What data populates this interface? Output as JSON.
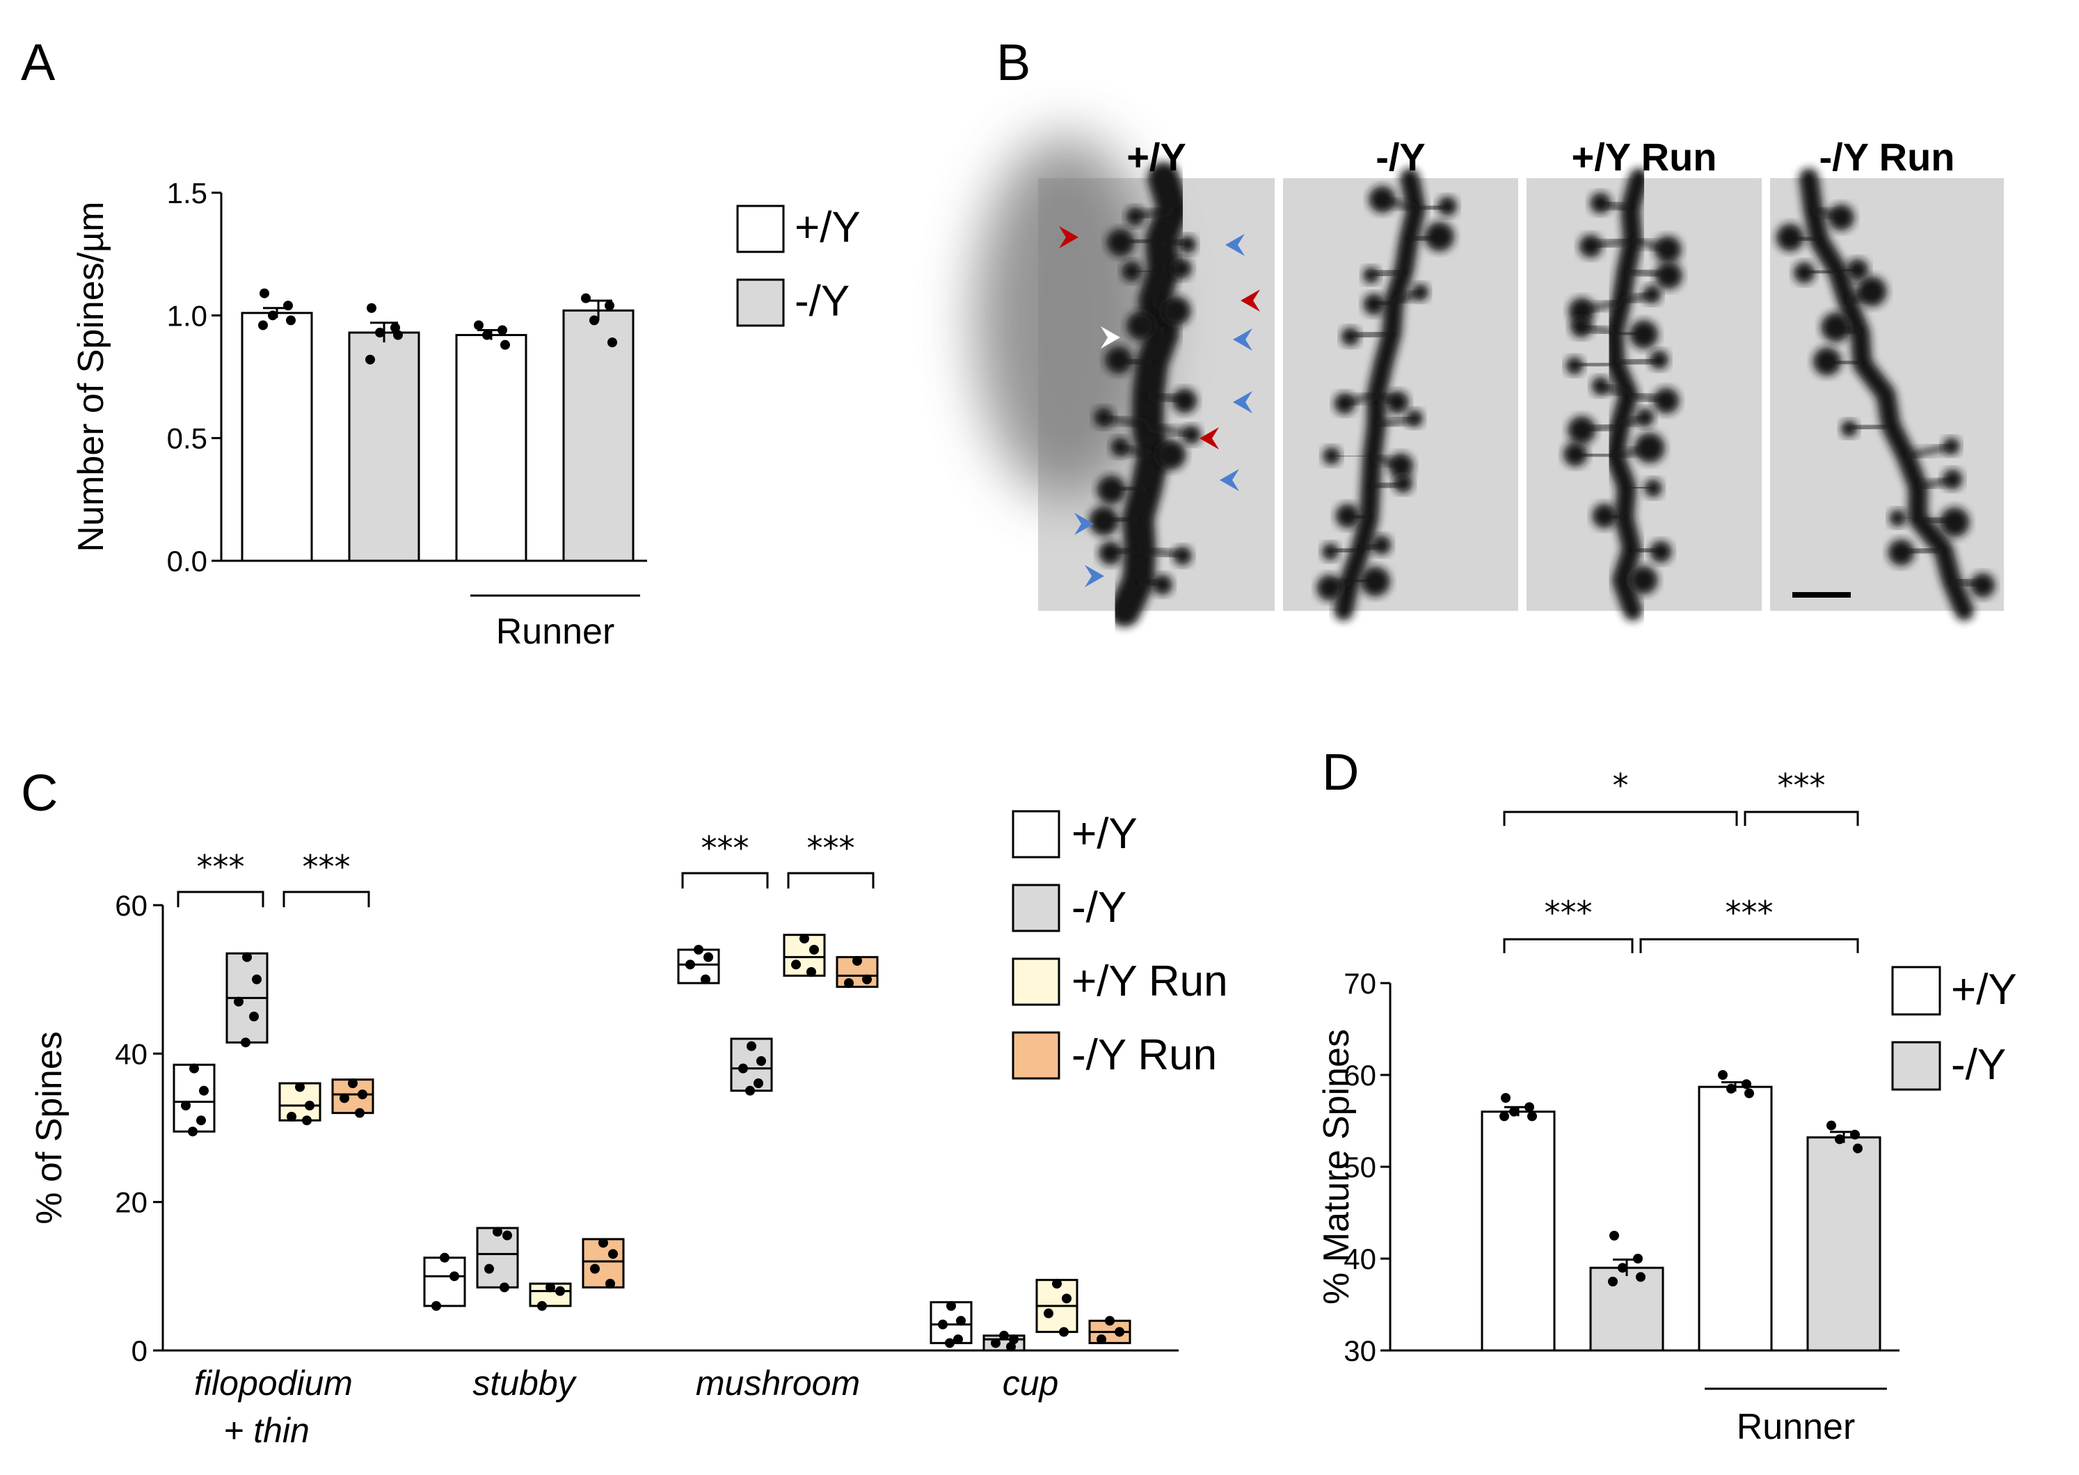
{
  "panels": {
    "A": "A",
    "B": "B",
    "C": "C",
    "D": "D"
  },
  "colors": {
    "wt": "#ffffff",
    "ko": "#d9d9d9",
    "wt_run": "#fff9d9",
    "ko_run": "#f5bf8e",
    "arrow_red": "#c00000",
    "arrow_blue": "#4a7fd0",
    "arrow_white": "#ffffff"
  },
  "panelB": {
    "titles": [
      "+/Y",
      "-/Y",
      "+/Y Run",
      "-/Y Run"
    ],
    "arrowheads": [
      {
        "color": "red",
        "direction": "right"
      },
      {
        "color": "blue",
        "direction": "left"
      },
      {
        "color": "red",
        "direction": "left"
      },
      {
        "color": "white",
        "direction": "right"
      },
      {
        "color": "blue",
        "direction": "left"
      },
      {
        "color": "blue",
        "direction": "left"
      },
      {
        "color": "red",
        "direction": "left"
      },
      {
        "color": "blue",
        "direction": "left"
      },
      {
        "color": "blue",
        "direction": "right"
      },
      {
        "color": "blue",
        "direction": "right"
      }
    ],
    "scale_bar": true
  },
  "chart_data": [
    {
      "panel": "A",
      "type": "bar",
      "ylabel": "Number of Spines/µm",
      "ylim": [
        0,
        1.5
      ],
      "yticks": [
        "0.0",
        "0.5",
        "1.0",
        "1.5"
      ],
      "categories": [
        "+/Y",
        "-/Y",
        "+/Y",
        "-/Y"
      ],
      "group_label": "Runner",
      "group_label_spans": [
        2,
        3
      ],
      "legend": [
        {
          "label": "+/Y",
          "color": "#ffffff"
        },
        {
          "label": "-/Y",
          "color": "#d9d9d9"
        }
      ],
      "legend_position": "right",
      "bars": [
        {
          "mean": 1.01,
          "sem": 0.02,
          "color": "#ffffff",
          "points": [
            1.09,
            1.04,
            1.0,
            0.98,
            0.96
          ]
        },
        {
          "mean": 0.93,
          "sem": 0.04,
          "color": "#d9d9d9",
          "points": [
            1.03,
            0.95,
            0.93,
            0.92,
            0.82
          ]
        },
        {
          "mean": 0.92,
          "sem": 0.02,
          "color": "#ffffff",
          "points": [
            0.96,
            0.94,
            0.92,
            0.88
          ]
        },
        {
          "mean": 1.02,
          "sem": 0.04,
          "color": "#d9d9d9",
          "points": [
            1.07,
            1.04,
            0.98,
            0.89
          ]
        }
      ]
    },
    {
      "panel": "C",
      "type": "box",
      "ylabel": "% of Spines",
      "ylim": [
        0,
        60
      ],
      "yticks": [
        "0",
        "20",
        "40",
        "60"
      ],
      "categories": [
        "filopodium + thin",
        "stubby",
        "mushroom",
        "cup"
      ],
      "category_lines": [
        [
          "filopodium",
          "+ thin"
        ],
        [
          "stubby"
        ],
        [
          "mushroom"
        ],
        [
          "cup"
        ]
      ],
      "legend": [
        {
          "label": "+/Y",
          "color": "#ffffff"
        },
        {
          "label": "-/Y",
          "color": "#d9d9d9"
        },
        {
          "label": "+/Y Run",
          "color": "#fff9d9"
        },
        {
          "label": "-/Y Run",
          "color": "#f5bf8e"
        }
      ],
      "legend_position": "right",
      "series": [
        {
          "name": "+/Y",
          "color": "#ffffff",
          "boxes": [
            {
              "min": 29.5,
              "median": 33.5,
              "max": 38.5,
              "points": [
                38,
                35,
                33,
                31,
                29.5
              ]
            },
            {
              "min": 6,
              "median": 10,
              "max": 12.5,
              "points": [
                12.5,
                10,
                6
              ]
            },
            {
              "min": 49.5,
              "median": 52,
              "max": 54,
              "points": [
                54,
                53,
                52,
                50
              ]
            },
            {
              "min": 1,
              "median": 3.5,
              "max": 6.5,
              "points": [
                6,
                4,
                3.5,
                1.5,
                1
              ]
            }
          ]
        },
        {
          "name": "-/Y",
          "color": "#d9d9d9",
          "boxes": [
            {
              "min": 41.5,
              "median": 47.5,
              "max": 53.5,
              "points": [
                53,
                50,
                47,
                45,
                41.5
              ]
            },
            {
              "min": 8.5,
              "median": 13,
              "max": 16.5,
              "points": [
                16,
                15.5,
                11,
                8.5
              ]
            },
            {
              "min": 35,
              "median": 38,
              "max": 42,
              "points": [
                41,
                39,
                38,
                36,
                35
              ]
            },
            {
              "min": 0,
              "median": 1.5,
              "max": 2,
              "points": [
                2,
                1.5,
                1,
                0.5
              ]
            }
          ]
        },
        {
          "name": "+/Y Run",
          "color": "#fff9d9",
          "boxes": [
            {
              "min": 31,
              "median": 33,
              "max": 36,
              "points": [
                35.5,
                33,
                31.5,
                31
              ]
            },
            {
              "min": 6,
              "median": 8,
              "max": 9,
              "points": [
                8.5,
                8,
                6
              ]
            },
            {
              "min": 50.5,
              "median": 53,
              "max": 56,
              "points": [
                55.5,
                54,
                52,
                51
              ]
            },
            {
              "min": 2.5,
              "median": 6,
              "max": 9.5,
              "points": [
                9,
                7,
                5,
                2.5
              ]
            }
          ]
        },
        {
          "name": "-/Y Run",
          "color": "#f5bf8e",
          "boxes": [
            {
              "min": 32,
              "median": 34.5,
              "max": 36.5,
              "points": [
                36,
                34.5,
                34,
                32
              ]
            },
            {
              "min": 8.5,
              "median": 12,
              "max": 15,
              "points": [
                14.5,
                13,
                11,
                9
              ]
            },
            {
              "min": 49,
              "median": 50.5,
              "max": 53,
              "points": [
                52.5,
                50,
                49.5
              ]
            },
            {
              "min": 1,
              "median": 2.5,
              "max": 4,
              "points": [
                4,
                2.5,
                1.5
              ]
            }
          ]
        }
      ],
      "significance": [
        {
          "category": 0,
          "from": 0,
          "to": 1,
          "label": "***"
        },
        {
          "category": 0,
          "from": 2,
          "to": 3,
          "label": "***"
        },
        {
          "category": 2,
          "from": 0,
          "to": 1,
          "label": "***"
        },
        {
          "category": 2,
          "from": 2,
          "to": 3,
          "label": "***"
        }
      ]
    },
    {
      "panel": "D",
      "type": "bar",
      "ylabel": "% Mature Spines",
      "ylim": [
        30,
        70
      ],
      "yticks": [
        "30",
        "40",
        "50",
        "60",
        "70"
      ],
      "categories": [
        "+/Y",
        "-/Y",
        "+/Y",
        "-/Y"
      ],
      "group_label": "Runner",
      "group_label_spans": [
        2,
        3
      ],
      "legend": [
        {
          "label": "+/Y",
          "color": "#ffffff"
        },
        {
          "label": "-/Y",
          "color": "#d9d9d9"
        }
      ],
      "legend_position": "right",
      "bars": [
        {
          "mean": 56.0,
          "sem": 0.5,
          "color": "#ffffff",
          "points": [
            57.5,
            56.5,
            56,
            55.5,
            55.5
          ]
        },
        {
          "mean": 39.0,
          "sem": 0.9,
          "color": "#d9d9d9",
          "points": [
            42.5,
            40,
            39,
            38,
            37.5
          ]
        },
        {
          "mean": 58.7,
          "sem": 0.5,
          "color": "#ffffff",
          "points": [
            60,
            59,
            58.5,
            58
          ]
        },
        {
          "mean": 53.2,
          "sem": 0.6,
          "color": "#d9d9d9",
          "points": [
            54.5,
            53.5,
            53,
            52
          ]
        }
      ],
      "significance": [
        {
          "from": 0,
          "to": 2,
          "label": "*",
          "level": 2
        },
        {
          "from": 2,
          "to": 3,
          "label": "***",
          "level": 2
        },
        {
          "from": 0,
          "to": 1,
          "label": "***",
          "level": 1
        },
        {
          "from": 1,
          "to": 3,
          "label": "***",
          "level": 1
        }
      ]
    }
  ]
}
